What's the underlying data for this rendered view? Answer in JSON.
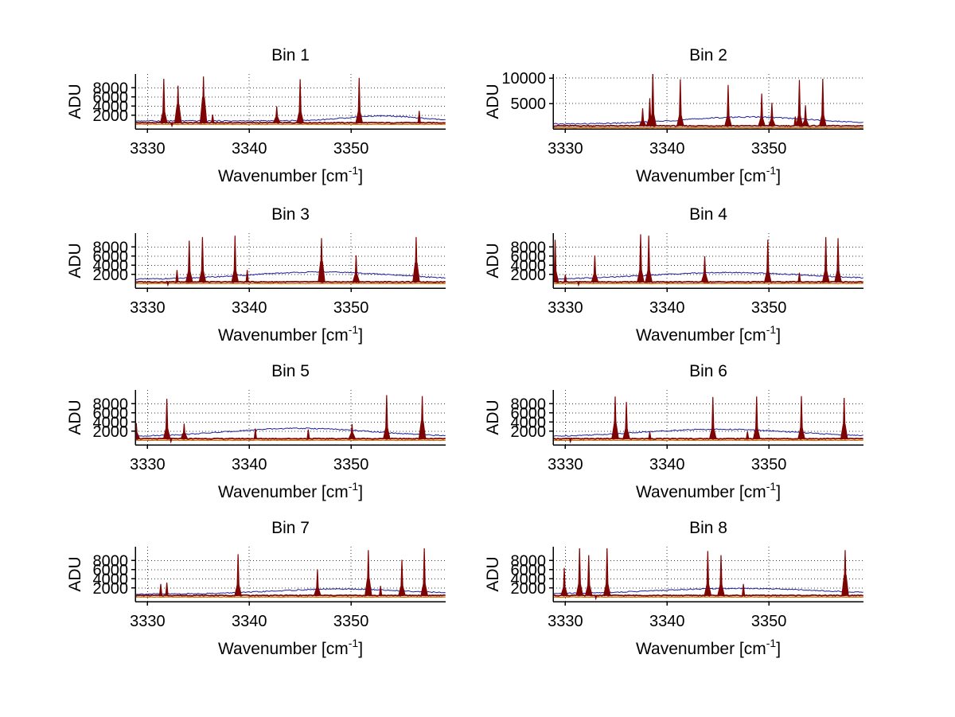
{
  "figure": {
    "background": "#ffffff",
    "axis_color": "#000000",
    "grid_color": "#3c3c3c",
    "spike_color": "#7e0404",
    "upper_envelope_color": "#1f1f9e",
    "lower_envelope_color": "#cc6a00",
    "ylabel": "ADU",
    "xlabel_main": "Wavenumber [cm",
    "xlabel_sup": "-1",
    "xlabel_end": "]"
  },
  "chart_data": [
    {
      "type": "line",
      "title": "Bin 1",
      "xlabel": "Wavenumber [cm⁻¹]",
      "ylabel": "ADU",
      "xlim": [
        3328.8,
        3359.3
      ],
      "ylim": [
        -1000,
        11000
      ],
      "grid": true,
      "xticks": [
        3330,
        3340,
        3350
      ],
      "yticks": [
        2000,
        4000,
        6000,
        8000
      ],
      "peaks": [
        [
          3331.6,
          9900
        ],
        [
          3333.0,
          8400,
          4300
        ],
        [
          3335.5,
          10400,
          5800
        ],
        [
          3336.4,
          2100
        ],
        [
          3342.7,
          3900
        ],
        [
          3345.0,
          9800
        ],
        [
          3350.8,
          10100
        ],
        [
          3356.7,
          2900
        ]
      ],
      "dips": [
        3332.4
      ],
      "red_base": 350,
      "orange_base": 0,
      "blue": {
        "base": 750,
        "hump": [
          3353,
          5,
          1100
        ],
        "spikes": []
      }
    },
    {
      "type": "line",
      "title": "Bin 2",
      "xlabel": "Wavenumber [cm⁻¹]",
      "ylabel": "ADU",
      "xlim": [
        3328.8,
        3359.3
      ],
      "ylim": [
        0,
        10800
      ],
      "grid": true,
      "xticks": [
        3330,
        3340,
        3350
      ],
      "yticks": [
        5000,
        10000
      ],
      "peaks": [
        [
          3337.6,
          4000
        ],
        [
          3338.3,
          6000
        ],
        [
          3338.6,
          11200
        ],
        [
          3341.3,
          9700
        ],
        [
          3346.0,
          8600
        ],
        [
          3349.3,
          6900
        ],
        [
          3350.3,
          5100
        ],
        [
          3352.6,
          2400
        ],
        [
          3353.0,
          9600
        ],
        [
          3353.6,
          4600
        ],
        [
          3355.3,
          9800
        ]
      ],
      "dips": [],
      "red_base": 600,
      "orange_base": 250,
      "blue": {
        "base": 950,
        "hump": [
          3348,
          9,
          1400
        ],
        "spikes": []
      }
    },
    {
      "type": "line",
      "title": "Bin 3",
      "xlabel": "Wavenumber [cm⁻¹]",
      "ylabel": "ADU",
      "xlim": [
        3328.8,
        3359.3
      ],
      "ylim": [
        -1000,
        11000
      ],
      "grid": true,
      "xticks": [
        3330,
        3340,
        3350
      ],
      "yticks": [
        2000,
        4000,
        6000,
        8000
      ],
      "peaks": [
        [
          3332.9,
          2900
        ],
        [
          3334.1,
          9300
        ],
        [
          3335.4,
          10100
        ],
        [
          3338.6,
          10400
        ],
        [
          3339.8,
          2900
        ],
        [
          3347.1,
          9850,
          4800
        ],
        [
          3350.5,
          6100
        ],
        [
          3356.4,
          10100,
          4500
        ]
      ],
      "dips": [
        3332.0
      ],
      "red_base": 350,
      "orange_base": 0,
      "blue": {
        "base": 900,
        "hump": [
          3347,
          10,
          1600
        ],
        "spikes": []
      }
    },
    {
      "type": "line",
      "title": "Bin 4",
      "xlabel": "Wavenumber [cm⁻¹]",
      "ylabel": "ADU",
      "xlim": [
        3328.8,
        3359.3
      ],
      "ylim": [
        -1000,
        11000
      ],
      "grid": true,
      "xticks": [
        3330,
        3340,
        3350
      ],
      "yticks": [
        2000,
        4000,
        6000,
        8000
      ],
      "peaks": [
        [
          3329.0,
          9500
        ],
        [
          3330.0,
          1900
        ],
        [
          3332.9,
          6100
        ],
        [
          3337.4,
          10700
        ],
        [
          3338.2,
          10400
        ],
        [
          3343.7,
          5900,
          2000
        ],
        [
          3349.9,
          9500
        ],
        [
          3353.0,
          2300
        ],
        [
          3355.6,
          10100
        ],
        [
          3356.8,
          9850
        ]
      ],
      "dips": [
        3331.3
      ],
      "red_base": 350,
      "orange_base": 0,
      "blue": {
        "base": 900,
        "hump": [
          3346,
          11,
          1500
        ],
        "spikes": [
          [
            3343.7,
            2700
          ]
        ]
      }
    },
    {
      "type": "line",
      "title": "Bin 5",
      "xlabel": "Wavenumber [cm⁻¹]",
      "ylabel": "ADU",
      "xlim": [
        3328.8,
        3359.3
      ],
      "ylim": [
        -1000,
        11000
      ],
      "grid": true,
      "xticks": [
        3330,
        3340,
        3350
      ],
      "yticks": [
        2000,
        4000,
        6000,
        8000
      ],
      "peaks": [
        [
          3328.9,
          3700
        ],
        [
          3331.9,
          9000
        ],
        [
          3333.6,
          3600
        ],
        [
          3340.6,
          2500
        ],
        [
          3345.8,
          2300
        ],
        [
          3350.1,
          3500
        ],
        [
          3353.5,
          9800
        ],
        [
          3357.0,
          9600,
          4200
        ]
      ],
      "dips": [
        3332.3
      ],
      "red_base": 350,
      "orange_base": 0,
      "blue": {
        "base": 800,
        "hump": [
          3345,
          10,
          1800
        ],
        "spikes": []
      }
    },
    {
      "type": "line",
      "title": "Bin 6",
      "xlabel": "Wavenumber [cm⁻¹]",
      "ylabel": "ADU",
      "xlim": [
        3328.8,
        3359.3
      ],
      "ylim": [
        -1000,
        11000
      ],
      "grid": true,
      "xticks": [
        3330,
        3340,
        3350
      ],
      "yticks": [
        2000,
        4000,
        6000,
        8000
      ],
      "peaks": [
        [
          3334.9,
          9500,
          3700
        ],
        [
          3336.0,
          8300
        ],
        [
          3338.3,
          1800
        ],
        [
          3344.5,
          9400
        ],
        [
          3347.9,
          1900
        ],
        [
          3348.8,
          9500
        ],
        [
          3353.2,
          9600
        ],
        [
          3357.4,
          9200,
          3500
        ]
      ],
      "dips": [
        3330.5
      ],
      "red_base": 350,
      "orange_base": 0,
      "blue": {
        "base": 700,
        "hump": [
          3345,
          11,
          1700
        ],
        "spikes": []
      }
    },
    {
      "type": "line",
      "title": "Bin 7",
      "xlabel": "Wavenumber [cm⁻¹]",
      "ylabel": "ADU",
      "xlim": [
        3328.8,
        3359.3
      ],
      "ylim": [
        -1000,
        11000
      ],
      "grid": true,
      "xticks": [
        3330,
        3340,
        3350
      ],
      "yticks": [
        2000,
        4000,
        6000,
        8000
      ],
      "peaks": [
        [
          3331.3,
          2800
        ],
        [
          3331.9,
          3100
        ],
        [
          3338.9,
          9300
        ],
        [
          3346.7,
          6000
        ],
        [
          3351.7,
          10200,
          4000
        ],
        [
          3352.9,
          2400
        ],
        [
          3355.0,
          8100
        ],
        [
          3357.2,
          10600
        ]
      ],
      "dips": [],
      "red_base": 350,
      "orange_base": 0,
      "blue": {
        "base": 650,
        "hump": [
          3349,
          9,
          1100
        ],
        "spikes": []
      }
    },
    {
      "type": "line",
      "title": "Bin 8",
      "xlabel": "Wavenumber [cm⁻¹]",
      "ylabel": "ADU",
      "xlim": [
        3328.8,
        3359.3
      ],
      "ylim": [
        -1000,
        11000
      ],
      "grid": true,
      "xticks": [
        3330,
        3340,
        3350
      ],
      "yticks": [
        2000,
        4000,
        6000,
        8000
      ],
      "peaks": [
        [
          3329.9,
          6300
        ],
        [
          3331.4,
          10600
        ],
        [
          3332.3,
          9100
        ],
        [
          3334.1,
          10600
        ],
        [
          3344.0,
          10000
        ],
        [
          3345.3,
          9100
        ],
        [
          3347.5,
          2800
        ],
        [
          3357.5,
          10200,
          4800
        ]
      ],
      "dips": [
        3333.0
      ],
      "red_base": 350,
      "orange_base": 0,
      "blue": {
        "base": 700,
        "hump": [
          3347,
          11,
          1200
        ],
        "spikes": [
          [
            3331.4,
            5200
          ]
        ]
      }
    }
  ]
}
